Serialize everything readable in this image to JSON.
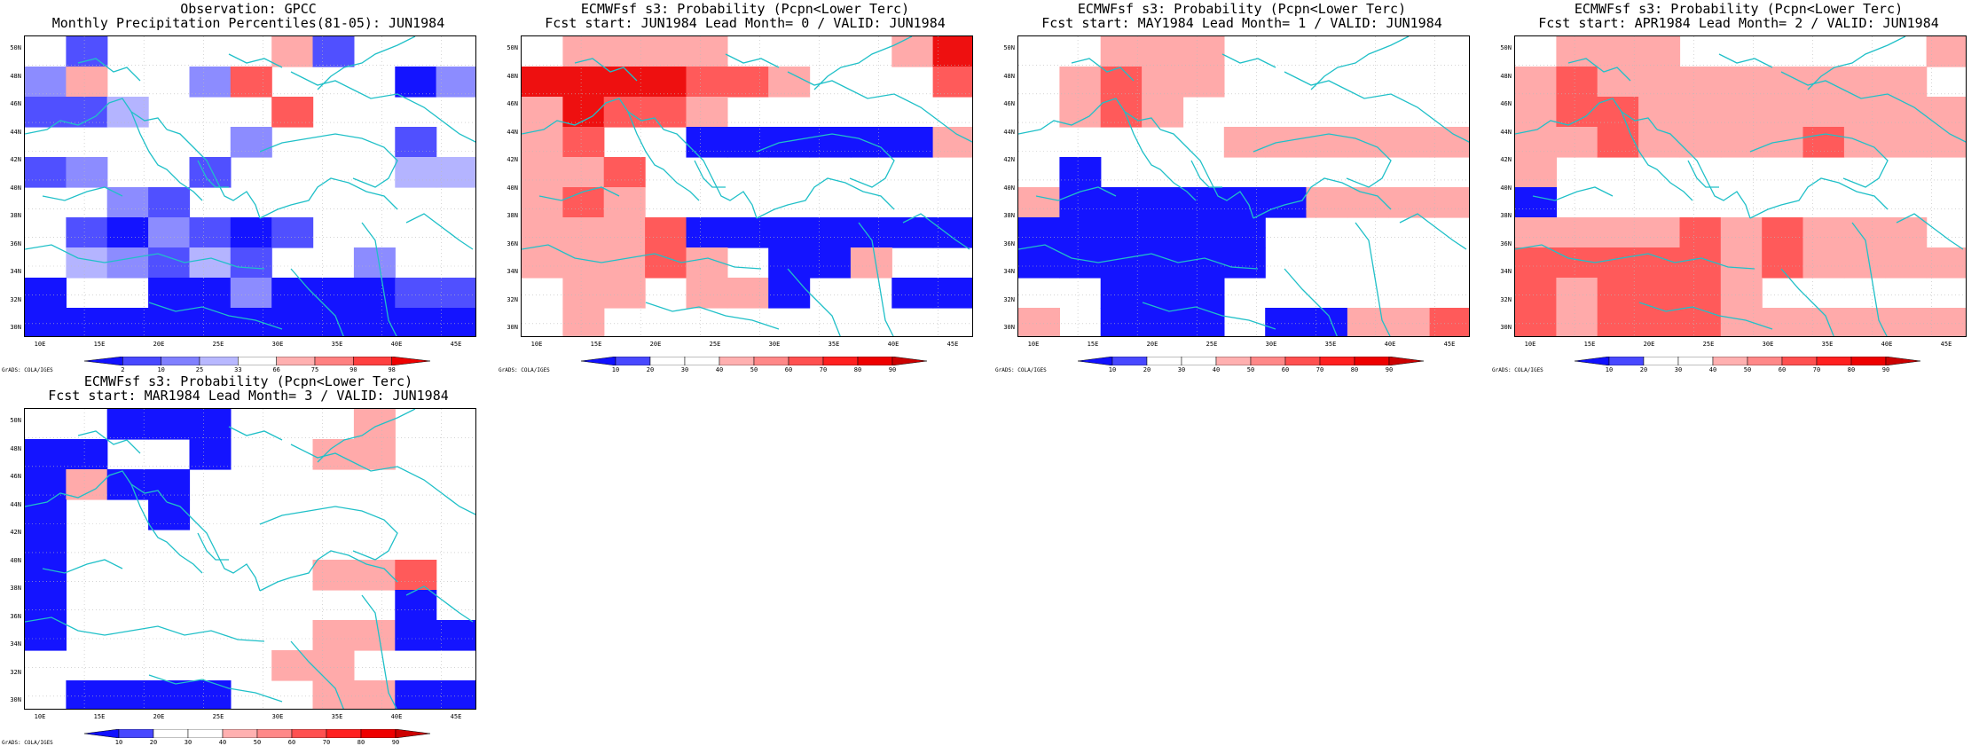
{
  "panels": [
    {
      "title1": "Observation: GPCC",
      "title2": "Monthly Precipitation Percentiles(81-05): JUN1984",
      "colorbar": "obs",
      "grid": [
        "..2..4.7....5.2..3.2..",
        "3.5..3..3.6..7.7..1.3.",
        "2.2.4..3.6..6..1.3.3..",
        ".......8..3..2....2...",
        "2.3.....2..2.3.3..4.4.",
        "....3.2..........3.3.3",
        "..2.1.3.2.1.2....1.3.3",
        "..4.3.2.4.2..1..3..3..",
        "1.....1.1.3.1.1.1.2.2.",
        "1.1.1.1.1.1.1.1.1.1.1."
      ]
    },
    {
      "title1": "ECMWFsf s3: Probability (Pcpn<Lower Terc)",
      "title2": "Fcst start: JUN1984  Lead Month= 0 / VALID: JUN1984",
      "colorbar": "prob",
      "grid": [
        "..5.5.5.5......1..5.7.",
        "7.7.7.7.6.6.5..1....6.",
        "5.7.6.6.5..1.1.1.5.5..",
        "5.6..5..1.1.1.1.1.1.5.",
        "5.5.6..1.1.1.1.1.1.5..",
        "5.6.5..1.1.1.1.1.1....",
        "5.5.5.6.1.1.1.1.1.1.1.",
        "5.5.5.6.5...1.1.5..1..",
        "..5.5...5.5.1..1..1.1.",
        "..5..5.6.5.1.1.1.1.1.1"
      ]
    },
    {
      "title1": "ECMWFsf s3: Probability (Pcpn<Lower Terc)",
      "title2": "Fcst start: MAY1984  Lead Month= 1 / VALID: JUN1984",
      "colorbar": "prob",
      "grid": [
        "....5.5.5....5.5.6.6..",
        "..5.6.5.5..5.5.5.5....",
        "..5.6.5..5.5.5.5.5.5..",
        ".......5..5.5.5.5.5.5.",
        "..1......5.5.5.5.5.5..",
        "5.1.1.1.1.1.1.5.5.5.5.",
        "1.1.1.1.1.1....5.5.5..",
        "1.1.1.1.1.1..5.5.5.5.5",
        "....1.1.1....1.5.5.5.5",
        "5...1.1.1...1.1.5.5.6."
      ]
    },
    {
      "title1": "ECMWFsf s3: Probability (Pcpn<Lower Terc)",
      "title2": "Fcst start: APR1984  Lead Month= 2 / VALID: JUN1984",
      "colorbar": "prob",
      "grid": [
        "..5.5.5..5.5.5.5.5..5.",
        "5.6.5.5.5.5.5.5.5.5...",
        "5.6.6.5.5.5.5.5.5.5.5.",
        "5.5.6.5.5.5.5.6.5.5.5.",
        "5..5.5.5.5.5.5.6.5....",
        "1..5.5.6.5.6.6.6.6.6.1",
        "5.5.5.5.6.5.6.5.5.5...",
        "6.6.6.6.6.5.6.5.5.5.5.",
        "6.5.6.6.6.5..5.5.5.5..",
        "6.5.6.6.6.5.5.5.5.5.5."
      ]
    },
    {
      "title1": "ECMWFsf s3: Probability (Pcpn<Lower Terc)",
      "title2": "Fcst start: MAR1984  Lead Month= 3 / VALID: JUN1984",
      "colorbar": "prob",
      "grid": [
        "....1.1.1.......5.....",
        "1.1.....1..1..5.5..5..",
        "1.5.1.1..5.5.5.6.6.5..",
        "1..1..1..5.5.6.5.6.5.5",
        "1..1...5.5.6.6.5.6.5.1",
        "1..1...5.6.6..5.5.6...",
        "1..1.6...5.5.5.5..1...",
        "1..1...5.5.1..5.5.1.1.",
        "...1.1...5..5.5..1.1.1",
        "..1.1.1.1..5..5.5.1.1."
      ]
    }
  ],
  "x_ticks": [
    "10E",
    "15E",
    "20E",
    "25E",
    "30E",
    "35E",
    "40E",
    "45E"
  ],
  "y_ticks": [
    "50N",
    "48N",
    "46N",
    "44N",
    "42N",
    "40N",
    "38N",
    "36N",
    "34N",
    "32N",
    "30N"
  ],
  "colorbars": {
    "obs": {
      "labels": [
        "2",
        "10",
        "25",
        "33",
        "66",
        "75",
        "90",
        "98"
      ],
      "colors": [
        "#1010ff",
        "#4848ff",
        "#8080ff",
        "#b8b8ff",
        "#ffffff",
        "#ffb0b0",
        "#ff8080",
        "#ff4040",
        "#ee0000"
      ]
    },
    "prob": {
      "labels": [
        "10",
        "20",
        "30",
        "40",
        "50",
        "60",
        "70",
        "80",
        "90"
      ],
      "colors": [
        "#1010ff",
        "#4848ff",
        "#ffffff",
        "#ffffff",
        "#ffb0b0",
        "#ff8888",
        "#ff5050",
        "#ff2020",
        "#ee0000",
        "#cc0000"
      ]
    }
  },
  "grid_colors": {
    "1": "#1414ff",
    "2": "#5050ff",
    "3": "#8c8cff",
    "4": "#b4b4ff",
    "5": "#ffaaaa",
    "6": "#ff5a5a",
    "7": "#ee1010",
    "8": "#dd0000"
  },
  "credit": "GrADS: COLA/IGES"
}
